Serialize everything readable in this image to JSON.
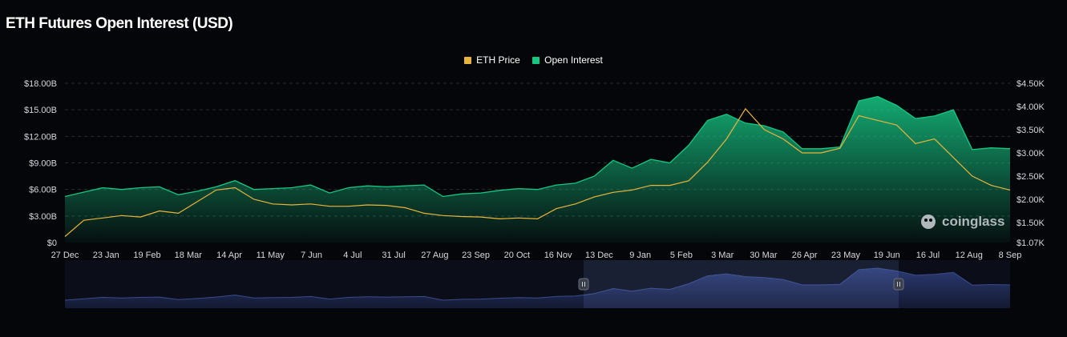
{
  "title": "ETH Futures Open Interest (USD)",
  "watermark": "coinglass",
  "colors": {
    "background": "#05060a",
    "eth_price": "#e8b53c",
    "open_interest": "#16c784",
    "navigator": "#3a4a8c"
  },
  "chart_data": {
    "type": "area",
    "legend_position": "top-center",
    "x_tick_labels": [
      "27 Dec",
      "23 Jan",
      "19 Feb",
      "18 Mar",
      "14 Apr",
      "11 May",
      "7 Jun",
      "4 Jul",
      "31 Jul",
      "27 Aug",
      "23 Sep",
      "20 Oct",
      "16 Nov",
      "13 Dec",
      "9 Jan",
      "5 Feb",
      "3 Mar",
      "30 Mar",
      "26 Apr",
      "23 May",
      "19 Jun",
      "16 Jul",
      "12 Aug",
      "8 Sep"
    ],
    "y_left": {
      "label": "Open Interest",
      "ticks": [
        "$0",
        "$3.00B",
        "$6.00B",
        "$9.00B",
        "$12.00B",
        "$15.00B",
        "$18.00B"
      ],
      "range": [
        0,
        18
      ]
    },
    "y_right": {
      "label": "ETH Price",
      "ticks": [
        "$1.07K",
        "$1.50K",
        "$2.00K",
        "$2.50K",
        "$3.00K",
        "$3.50K",
        "$4.00K",
        "$4.50K"
      ],
      "range": [
        1070,
        4500
      ]
    },
    "series": [
      {
        "name": "Open Interest",
        "unit": "USD billions",
        "axis": "left",
        "values": [
          5.2,
          5.7,
          6.2,
          6.0,
          6.2,
          6.3,
          5.4,
          5.8,
          6.3,
          7.0,
          6.0,
          6.1,
          6.2,
          6.5,
          5.6,
          6.2,
          6.4,
          6.3,
          6.4,
          6.5,
          5.2,
          5.5,
          5.6,
          5.9,
          6.1,
          6.0,
          6.5,
          6.7,
          7.5,
          9.3,
          8.4,
          9.4,
          9.0,
          11.0,
          13.8,
          14.5,
          13.5,
          13.2,
          12.5,
          10.6,
          10.6,
          10.8,
          16.0,
          16.5,
          15.5,
          14.0,
          14.3,
          15.0,
          10.5,
          10.7,
          10.6
        ]
      },
      {
        "name": "ETH Price",
        "unit": "USD",
        "axis": "right",
        "values": [
          1200,
          1550,
          1600,
          1650,
          1620,
          1750,
          1700,
          1950,
          2200,
          2250,
          2000,
          1900,
          1880,
          1900,
          1850,
          1850,
          1880,
          1870,
          1820,
          1700,
          1650,
          1630,
          1620,
          1580,
          1600,
          1580,
          1800,
          1900,
          2050,
          2150,
          2200,
          2300,
          2300,
          2400,
          2800,
          3300,
          3950,
          3500,
          3300,
          3000,
          3000,
          3100,
          3800,
          3700,
          3600,
          3200,
          3300,
          2900,
          2500,
          2300,
          2200
        ]
      }
    ]
  }
}
